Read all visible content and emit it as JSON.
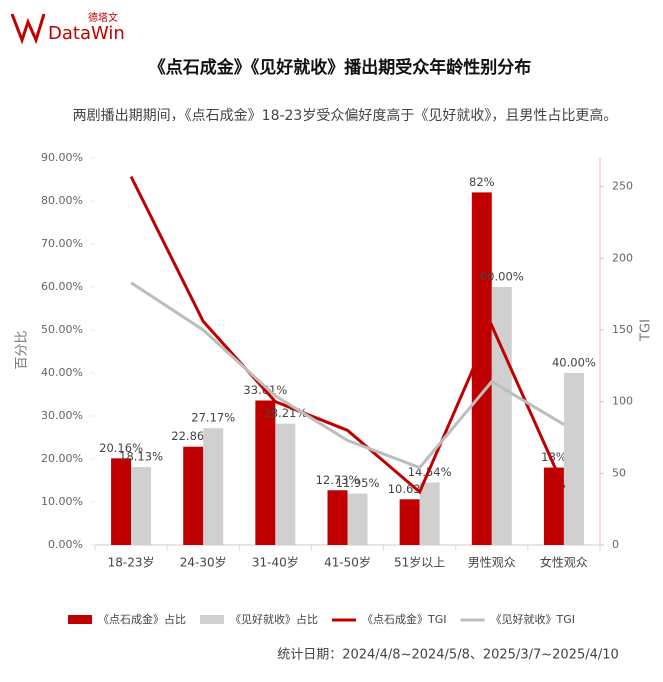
{
  "header": {
    "logo": "DataWin",
    "logo_cn": "德塔文"
  },
  "chart_data": {
    "type": "bar_line",
    "title": "《点石成金》《见好就收》播出期受众年龄性别分布",
    "subtitle": "两剧播出期期间，《点石成金》18-23岁受众偏好度高于《见好就收》，且男性占比更高。",
    "y_label": "百分比",
    "y2_label": "TGI",
    "footnote": "统计日期：2024/4/8~2024/5/8、2025/3/7~2025/4/10",
    "categories": [
      "18-23岁",
      "24-30岁",
      "31-40岁",
      "41-50岁",
      "51岁以上",
      "男性观众",
      "女性观众"
    ],
    "series": [
      {
        "name": "《点石成金》占比",
        "kind": "bar",
        "color": "#c00000",
        "values": [
          20.16,
          22.86,
          33.61,
          12.73,
          10.63,
          82,
          18
        ],
        "value_labels": [
          "20.16%",
          "22.86%",
          "33.61%",
          "12.73%",
          "10.63%",
          "82%",
          "18%"
        ]
      },
      {
        "name": "《见好就收》占比",
        "kind": "bar",
        "color": "#d0d0d0",
        "values": [
          18.13,
          27.17,
          28.21,
          11.95,
          14.54,
          60.0,
          40.0
        ],
        "value_labels": [
          "18.13%",
          "27.17%",
          "28.21%",
          "11.95%",
          "14.54%",
          "60.00%",
          "40.00%"
        ]
      },
      {
        "name": "《点石成金》TGI",
        "kind": "line",
        "axis": "y2",
        "color": "#c00000",
        "values": [
          257,
          156,
          100,
          80,
          37,
          153,
          40
        ]
      },
      {
        "name": "《见好就收》TGI",
        "kind": "line",
        "axis": "y2",
        "color": "#bdbdbd",
        "values": [
          183,
          150,
          104,
          73,
          54,
          114,
          84
        ]
      }
    ],
    "ylim": [
      0,
      90
    ],
    "yticks": [
      {
        "value": 0,
        "label": "0.00%"
      },
      {
        "value": 10,
        "label": "10.00%"
      },
      {
        "value": 20,
        "label": "20.00%"
      },
      {
        "value": 30,
        "label": "30.00%"
      },
      {
        "value": 40,
        "label": "40.00%"
      },
      {
        "value": 50,
        "label": "50.00%"
      },
      {
        "value": 60,
        "label": "60.00%"
      },
      {
        "value": 70,
        "label": "70.00%"
      },
      {
        "value": 80,
        "label": "80.00%"
      },
      {
        "value": 90,
        "label": "90.00%"
      }
    ],
    "y2lim": [
      0,
      270
    ],
    "y2ticks": [
      0,
      50,
      100,
      150,
      200,
      250
    ]
  }
}
